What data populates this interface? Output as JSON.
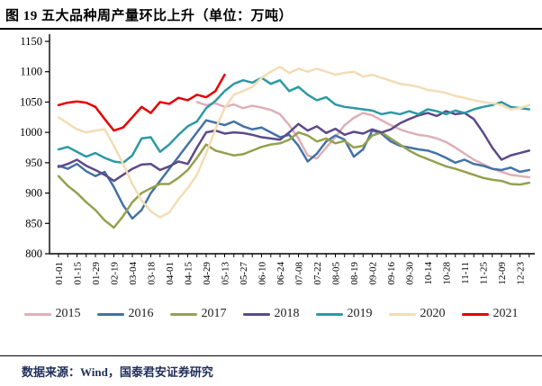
{
  "page": {
    "title": "图 19 五大品种周产量环比上升（单位：万吨）",
    "source_note": "数据来源：Wind，国泰君安证券研究"
  },
  "chart_data": {
    "type": "line",
    "title": "五大品种周产量环比上升（单位：万吨）",
    "xlabel": "",
    "ylabel": "",
    "ylim": [
      800,
      1150
    ],
    "y_ticks": [
      800,
      850,
      900,
      950,
      1000,
      1050,
      1100,
      1150
    ],
    "grid": false,
    "legend_position": "bottom",
    "x_tick_labels": [
      "01-01",
      "01-15",
      "01-29",
      "02-19",
      "03-04",
      "03-18",
      "04-01",
      "04-15",
      "04-29",
      "05-13",
      "05-27",
      "06-10",
      "06-24",
      "07-08",
      "07-22",
      "08-05",
      "08-19",
      "09-02",
      "09-16",
      "09-30",
      "10-14",
      "10-28",
      "11-11",
      "11-25",
      "12-09",
      "12-23"
    ],
    "points_per_series": 52,
    "series": [
      {
        "name": "2015",
        "color": "#ddb0b8",
        "values": [
          null,
          null,
          null,
          null,
          null,
          null,
          null,
          null,
          null,
          null,
          null,
          null,
          null,
          null,
          null,
          1050,
          1045,
          1048,
          1042,
          1046,
          1040,
          1044,
          1041,
          1037,
          1030,
          1012,
          990,
          962,
          957,
          975,
          992,
          1012,
          1024,
          1032,
          1028,
          1020,
          1012,
          1005,
          1000,
          996,
          994,
          990,
          984,
          975,
          965,
          955,
          948,
          940,
          935,
          930,
          928,
          926
        ]
      },
      {
        "name": "2016",
        "color": "#4472a4",
        "values": [
          945,
          940,
          948,
          936,
          928,
          935,
          910,
          880,
          858,
          872,
          900,
          920,
          940,
          960,
          980,
          1000,
          1020,
          1016,
          1012,
          1018,
          1010,
          1005,
          1008,
          1000,
          992,
          996,
          978,
          952,
          965,
          985,
          995,
          988,
          960,
          972,
          1003,
          998,
          985,
          978,
          975,
          972,
          970,
          965,
          958,
          950,
          955,
          948,
          945,
          940,
          938,
          942,
          935,
          938
        ]
      },
      {
        "name": "2017",
        "color": "#94a14e",
        "values": [
          928,
          912,
          900,
          885,
          872,
          855,
          843,
          862,
          885,
          900,
          908,
          915,
          915,
          925,
          938,
          958,
          980,
          970,
          966,
          962,
          964,
          970,
          976,
          980,
          982,
          988,
          1000,
          995,
          985,
          990,
          982,
          986,
          975,
          978,
          995,
          1000,
          990,
          980,
          970,
          962,
          956,
          950,
          944,
          940,
          935,
          930,
          925,
          922,
          920,
          915,
          914,
          917
        ]
      },
      {
        "name": "2018",
        "color": "#5c4a8a",
        "values": [
          943,
          948,
          955,
          945,
          938,
          930,
          920,
          930,
          940,
          947,
          948,
          938,
          944,
          952,
          948,
          975,
          1000,
          1003,
          998,
          1000,
          999,
          996,
          992,
          990,
          988,
          1000,
          1014,
          1003,
          1010,
          999,
          1006,
          996,
          1001,
          998,
          1005,
          1000,
          1005,
          1015,
          1022,
          1028,
          1032,
          1027,
          1035,
          1030,
          1032,
          1022,
          1000,
          975,
          955,
          962,
          966,
          970
        ]
      },
      {
        "name": "2019",
        "color": "#2e99a3",
        "values": [
          972,
          976,
          968,
          960,
          966,
          958,
          952,
          950,
          962,
          990,
          992,
          968,
          980,
          996,
          1010,
          1018,
          1040,
          1052,
          1068,
          1080,
          1086,
          1082,
          1090,
          1080,
          1086,
          1068,
          1075,
          1062,
          1053,
          1058,
          1046,
          1042,
          1040,
          1038,
          1036,
          1030,
          1033,
          1030,
          1035,
          1030,
          1038,
          1035,
          1030,
          1036,
          1032,
          1038,
          1042,
          1045,
          1050,
          1042,
          1040,
          1038
        ]
      },
      {
        "name": "2020",
        "color": "#f3dcb5",
        "values": [
          1025,
          1015,
          1005,
          1000,
          1003,
          1005,
          978,
          948,
          915,
          888,
          870,
          860,
          868,
          890,
          908,
          930,
          966,
          1005,
          1040,
          1062,
          1068,
          1075,
          1090,
          1100,
          1108,
          1098,
          1105,
          1100,
          1105,
          1100,
          1095,
          1098,
          1100,
          1092,
          1095,
          1090,
          1085,
          1080,
          1078,
          1075,
          1070,
          1068,
          1065,
          1060,
          1057,
          1053,
          1050,
          1048,
          1045,
          1038,
          1040,
          1045
        ]
      },
      {
        "name": "2021",
        "color": "#e60000",
        "values": [
          1045,
          1049,
          1051,
          1049,
          1042,
          1022,
          1003,
          1008,
          1025,
          1042,
          1032,
          1050,
          1047,
          1057,
          1053,
          1062,
          1058,
          1068,
          1095,
          null,
          null,
          null,
          null,
          null,
          null,
          null,
          null,
          null,
          null,
          null,
          null,
          null,
          null,
          null,
          null,
          null,
          null,
          null,
          null,
          null,
          null,
          null,
          null,
          null,
          null,
          null,
          null,
          null,
          null,
          null,
          null,
          null
        ]
      }
    ]
  }
}
